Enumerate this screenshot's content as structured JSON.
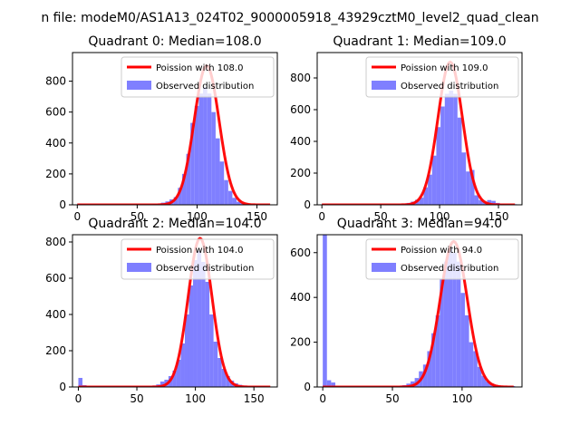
{
  "figure": {
    "suptitle": "n file: modeM0/AS1A13_024T02_9000005918_43929cztM0_level2_quad_clean"
  },
  "style": {
    "hist_color": "#7f7fff",
    "line_color": "#ff0000",
    "axis_color": "#000000"
  },
  "chart_data": [
    {
      "type": "bar",
      "title": "Quadrant 0: Median=108.0",
      "median": 108.0,
      "xlim": [
        -4,
        167
      ],
      "ylim": [
        0,
        985
      ],
      "xticks": [
        0,
        50,
        100,
        150
      ],
      "yticks": [
        0,
        200,
        400,
        600,
        800
      ],
      "bin_width": 3.5,
      "hist": {
        "bin_starts": [
          0,
          3.5,
          7,
          10.5,
          14,
          17.5,
          21,
          24.5,
          28,
          31.5,
          35,
          38.5,
          42,
          45.5,
          49,
          52.5,
          56,
          59.5,
          63,
          66.5,
          70,
          73.5,
          77,
          80.5,
          84,
          87.5,
          91,
          94.5,
          98,
          101.5,
          105,
          108.5,
          112,
          115.5,
          119,
          122.5,
          126,
          129.5,
          133,
          136.5,
          140,
          143.5,
          147,
          150.5,
          154,
          157.5
        ],
        "values": [
          8,
          5,
          4,
          4,
          4,
          4,
          4,
          4,
          4,
          4,
          4,
          4,
          4,
          4,
          4,
          4,
          4,
          4,
          6,
          8,
          14,
          22,
          35,
          50,
          110,
          200,
          330,
          530,
          640,
          720,
          760,
          720,
          600,
          430,
          280,
          160,
          90,
          45,
          20,
          10,
          5,
          4,
          4,
          4,
          4,
          4
        ]
      },
      "legend": [
        "Poission with 108.0",
        "Observed distribution"
      ],
      "curve_peak": 900
    },
    {
      "type": "bar",
      "title": "Quadrant 1: Median=109.0",
      "median": 109.0,
      "xlim": [
        -4,
        170
      ],
      "ylim": [
        0,
        960
      ],
      "xticks": [
        0,
        50,
        100,
        150
      ],
      "yticks": [
        0,
        200,
        400,
        600,
        800
      ],
      "bin_width": 3.6,
      "hist": {
        "bin_starts": [
          0,
          3.6,
          7.2,
          10.8,
          14.4,
          18,
          21.6,
          25.2,
          28.8,
          32.4,
          36,
          39.6,
          43.2,
          46.8,
          50.4,
          54,
          57.6,
          61.2,
          64.8,
          68.4,
          72,
          75.6,
          79.2,
          82.8,
          86.4,
          90,
          93.6,
          97.2,
          100.8,
          104.4,
          108,
          111.6,
          115.2,
          118.8,
          122.4,
          126,
          129.6,
          133.2,
          136.8,
          140.4,
          144,
          147.6,
          151.2,
          154.8,
          158.4,
          162
        ],
        "values": [
          6,
          4,
          4,
          4,
          4,
          4,
          4,
          4,
          4,
          4,
          4,
          4,
          4,
          4,
          4,
          4,
          4,
          4,
          5,
          7,
          12,
          20,
          32,
          45,
          110,
          190,
          310,
          490,
          620,
          700,
          720,
          700,
          550,
          330,
          210,
          220,
          60,
          30,
          18,
          30,
          25,
          12,
          6,
          4,
          4,
          4
        ]
      },
      "legend": [
        "Poission with 109.0",
        "Observed distribution"
      ],
      "curve_peak": 900
    },
    {
      "type": "bar",
      "title": "Quadrant 2: Median=104.0",
      "median": 104.0,
      "xlim": [
        -5,
        170
      ],
      "ylim": [
        0,
        840
      ],
      "xticks": [
        0,
        50,
        100,
        150
      ],
      "yticks": [
        0,
        200,
        400,
        600,
        800
      ],
      "bin_width": 3.5,
      "hist": {
        "bin_starts": [
          0,
          3.5,
          7,
          10.5,
          14,
          17.5,
          21,
          24.5,
          28,
          31.5,
          35,
          38.5,
          42,
          45.5,
          49,
          52.5,
          56,
          59.5,
          63,
          66.5,
          70,
          73.5,
          77,
          80.5,
          84,
          87.5,
          91,
          94.5,
          98,
          101.5,
          105,
          108.5,
          112,
          115.5,
          119,
          122.5,
          126,
          129.5,
          133,
          136.5,
          140,
          143.5,
          147,
          150.5,
          154,
          157.5
        ],
        "values": [
          50,
          10,
          6,
          5,
          5,
          5,
          5,
          5,
          5,
          5,
          5,
          5,
          5,
          5,
          5,
          5,
          5,
          6,
          8,
          14,
          30,
          40,
          60,
          90,
          150,
          240,
          400,
          560,
          700,
          750,
          690,
          580,
          400,
          250,
          160,
          100,
          60,
          35,
          20,
          12,
          8,
          6,
          5,
          5,
          5,
          5
        ]
      },
      "legend": [
        "Poission with 104.0",
        "Observed distribution"
      ],
      "curve_peak": 820
    },
    {
      "type": "bar",
      "title": "Quadrant 3: Median=94.0",
      "median": 94.0,
      "xlim": [
        -4,
        143
      ],
      "ylim": [
        0,
        680
      ],
      "xticks": [
        0,
        50,
        100
      ],
      "yticks": [
        0,
        200,
        400,
        600
      ],
      "bin_width": 3.0,
      "hist": {
        "bin_starts": [
          0,
          3,
          6,
          9,
          12,
          15,
          18,
          21,
          24,
          27,
          30,
          33,
          36,
          39,
          42,
          45,
          48,
          51,
          54,
          57,
          60,
          63,
          66,
          69,
          72,
          75,
          78,
          81,
          84,
          87,
          90,
          93,
          96,
          99,
          102,
          105,
          108,
          111,
          114,
          117,
          120,
          123,
          126,
          129,
          132,
          135
        ],
        "values": [
          680,
          30,
          20,
          5,
          4,
          4,
          4,
          4,
          4,
          4,
          4,
          4,
          4,
          4,
          4,
          4,
          4,
          4,
          5,
          8,
          15,
          25,
          40,
          70,
          100,
          160,
          240,
          320,
          480,
          560,
          620,
          600,
          560,
          420,
          320,
          200,
          160,
          90,
          50,
          25,
          15,
          8,
          5,
          4,
          4,
          4
        ]
      },
      "legend": [
        "Poission with 94.0",
        "Observed distribution"
      ],
      "curve_peak": 650
    }
  ]
}
